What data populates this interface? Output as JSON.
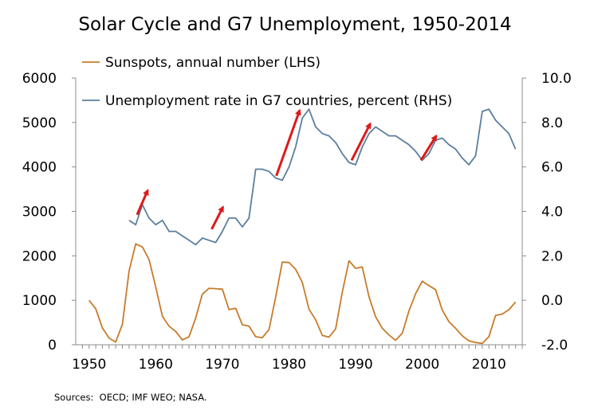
{
  "chart_data": {
    "type": "line",
    "title": "Solar Cycle and G7 Unemployment, 1950-2014",
    "xlim": [
      1948,
      2015
    ],
    "ylim_left": [
      0,
      6000
    ],
    "ylim_right": [
      -2.0,
      10.0
    ],
    "x_ticks": [
      "1950",
      "1960",
      "1970",
      "1980",
      "1990",
      "2000",
      "2010"
    ],
    "y_left_ticks": [
      "0",
      "1000",
      "2000",
      "3000",
      "4000",
      "5000",
      "6000"
    ],
    "y_right_ticks": [
      "-2.0",
      "0.0",
      "2.0",
      "4.0",
      "6.0",
      "8.0",
      "10.0"
    ],
    "series": [
      {
        "name": "Sunspots, annual number (LHS)",
        "axis": "left",
        "color": "#c87b2a",
        "x": [
          1950,
          1951,
          1952,
          1953,
          1954,
          1955,
          1956,
          1957,
          1958,
          1959,
          1960,
          1961,
          1962,
          1963,
          1964,
          1965,
          1966,
          1967,
          1968,
          1969,
          1970,
          1971,
          1972,
          1973,
          1974,
          1975,
          1976,
          1977,
          1978,
          1979,
          1980,
          1981,
          1982,
          1983,
          1984,
          1985,
          1986,
          1987,
          1988,
          1989,
          1990,
          1991,
          1992,
          1993,
          1994,
          1995,
          1996,
          1997,
          1998,
          1999,
          2000,
          2001,
          2002,
          2003,
          2004,
          2005,
          2006,
          2007,
          2008,
          2009,
          2010,
          2011,
          2012,
          2013,
          2014
        ],
        "values": [
          1000,
          810,
          380,
          150,
          60,
          460,
          1660,
          2270,
          2200,
          1920,
          1300,
          640,
          420,
          300,
          110,
          180,
          600,
          1140,
          1270,
          1260,
          1250,
          790,
          820,
          450,
          420,
          180,
          160,
          340,
          1070,
          1860,
          1850,
          1700,
          1400,
          800,
          560,
          210,
          170,
          360,
          1180,
          1890,
          1720,
          1750,
          1080,
          630,
          370,
          220,
          100,
          260,
          760,
          1150,
          1430,
          1330,
          1240,
          780,
          520,
          370,
          200,
          90,
          50,
          30,
          180,
          660,
          690,
          790,
          960
        ]
      },
      {
        "name": "Unemployment rate in G7 countries, percent (RHS)",
        "axis": "right",
        "color": "#5b7e9f",
        "x": [
          1956,
          1957,
          1958,
          1959,
          1960,
          1961,
          1962,
          1963,
          1964,
          1965,
          1966,
          1967,
          1968,
          1969,
          1970,
          1971,
          1972,
          1973,
          1974,
          1975,
          1976,
          1977,
          1978,
          1979,
          1980,
          1981,
          1982,
          1983,
          1984,
          1985,
          1986,
          1987,
          1988,
          1989,
          1990,
          1991,
          1992,
          1993,
          1994,
          1995,
          1996,
          1997,
          1998,
          1999,
          2000,
          2001,
          2002,
          2003,
          2004,
          2005,
          2006,
          2007,
          2008,
          2009,
          2010,
          2011,
          2012,
          2013,
          2014
        ],
        "values": [
          3.6,
          3.4,
          4.3,
          3.7,
          3.4,
          3.6,
          3.1,
          3.1,
          2.9,
          2.7,
          2.5,
          2.8,
          2.7,
          2.6,
          3.1,
          3.7,
          3.7,
          3.3,
          3.7,
          5.9,
          5.9,
          5.8,
          5.5,
          5.4,
          6.0,
          6.9,
          8.2,
          8.6,
          7.8,
          7.5,
          7.4,
          7.1,
          6.6,
          6.2,
          6.1,
          6.9,
          7.5,
          7.8,
          7.6,
          7.4,
          7.4,
          7.2,
          7.0,
          6.7,
          6.3,
          6.6,
          7.2,
          7.3,
          7.0,
          6.8,
          6.4,
          6.1,
          6.5,
          8.5,
          8.6,
          8.1,
          7.8,
          7.5,
          6.8
        ]
      }
    ],
    "arrows": [
      {
        "from": [
          1957.2,
          3.85
        ],
        "to": [
          1958.8,
          4.95
        ]
      },
      {
        "from": [
          1968.4,
          3.2
        ],
        "to": [
          1970.1,
          4.2
        ]
      },
      {
        "from": [
          1978.1,
          5.6
        ],
        "to": [
          1981.6,
          8.55
        ]
      },
      {
        "from": [
          1989.4,
          6.3
        ],
        "to": [
          1992.2,
          7.95
        ]
      },
      {
        "from": [
          1999.8,
          6.3
        ],
        "to": [
          2002.1,
          7.4
        ]
      }
    ],
    "arrow_color": "#dd1a1a",
    "source": "Sources:  OECD; IMF WEO; NASA."
  }
}
